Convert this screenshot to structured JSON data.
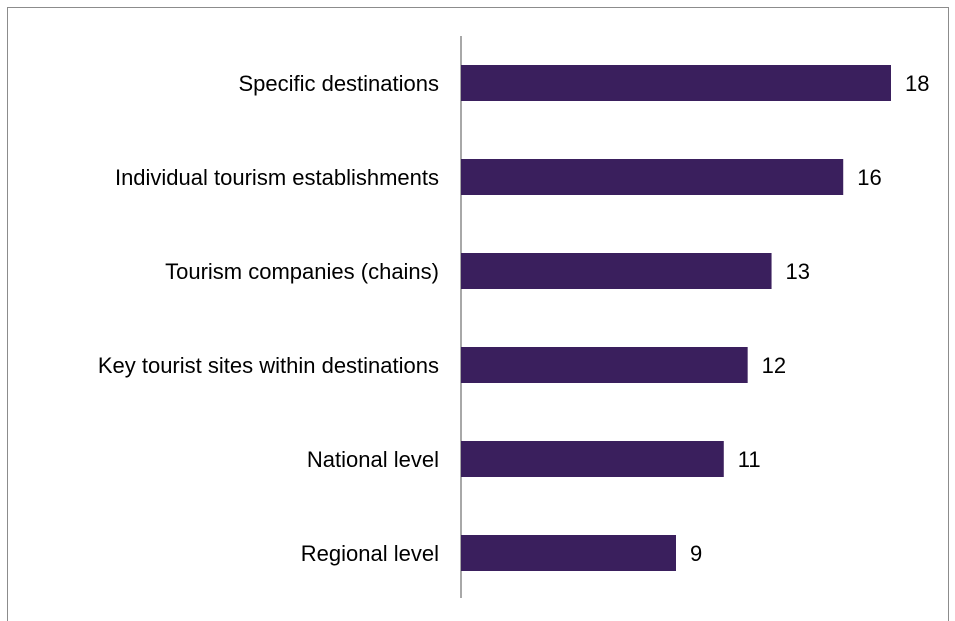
{
  "chart_data": {
    "type": "bar",
    "orientation": "horizontal",
    "title": "",
    "xlabel": "",
    "ylabel": "",
    "categories": [
      "Specific destinations",
      "Individual tourism establishments",
      "Tourism companies (chains)",
      "Key tourist sites within destinations",
      "National level",
      "Regional level"
    ],
    "values": [
      18,
      16,
      13,
      12,
      11,
      9
    ],
    "xlim": [
      0,
      18
    ],
    "grid": false,
    "legend": "none",
    "data_labels": true,
    "bar_color": "#3a1f5d",
    "axis_color": "#8c8c8c"
  }
}
